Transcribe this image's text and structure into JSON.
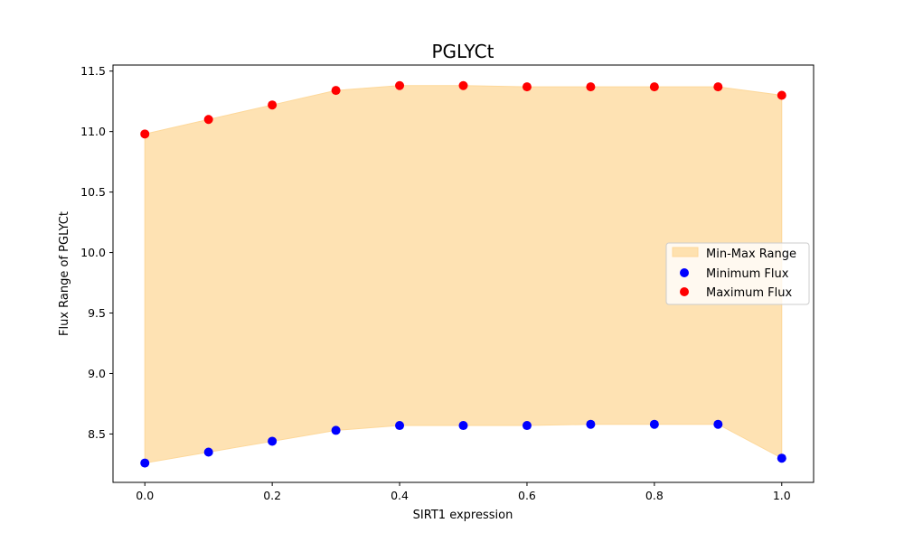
{
  "chart_data": {
    "type": "scatter",
    "title": "PGLYCt",
    "xlabel": "SIRT1 expression",
    "ylabel": "Flux Range of PGLYCt",
    "x": [
      0.0,
      0.1,
      0.2,
      0.3,
      0.4,
      0.5,
      0.6,
      0.7,
      0.8,
      0.9,
      1.0
    ],
    "series": [
      {
        "name": "Minimum Flux",
        "color": "#0000ff",
        "values": [
          8.26,
          8.35,
          8.44,
          8.53,
          8.57,
          8.57,
          8.57,
          8.58,
          8.58,
          8.58,
          8.3
        ]
      },
      {
        "name": "Maximum Flux",
        "color": "#ff0000",
        "values": [
          10.98,
          11.1,
          11.22,
          11.34,
          11.38,
          11.38,
          11.37,
          11.37,
          11.37,
          11.37,
          11.3
        ]
      }
    ],
    "fill": {
      "name": "Min-Max Range",
      "color": "#fdd89a",
      "lower": "Minimum Flux",
      "upper": "Maximum Flux"
    },
    "xlim": [
      -0.05,
      1.05
    ],
    "ylim": [
      8.1,
      11.55
    ],
    "xticks": [
      0.0,
      0.2,
      0.4,
      0.6,
      0.8,
      1.0
    ],
    "xtick_labels": [
      "0.0",
      "0.2",
      "0.4",
      "0.6",
      "0.8",
      "1.0"
    ],
    "yticks": [
      8.5,
      9.0,
      9.5,
      10.0,
      10.5,
      11.0,
      11.5
    ],
    "ytick_labels": [
      "8.5",
      "9.0",
      "9.5",
      "10.0",
      "10.5",
      "11.0",
      "11.5"
    ],
    "grid": false,
    "legend_position": "center-right"
  }
}
